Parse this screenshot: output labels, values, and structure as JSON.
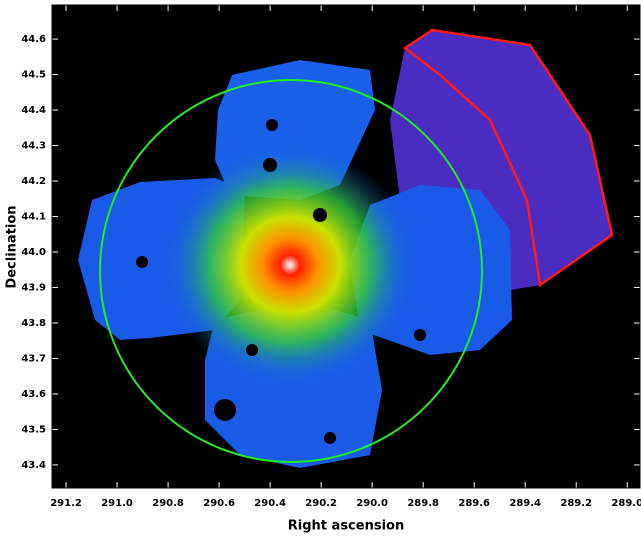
{
  "chart_data": {
    "type": "image",
    "x_label": "Right ascension",
    "y_label": "Declination",
    "xlim": [
      291.255,
      288.95
    ],
    "ylim": [
      43.335,
      44.696
    ],
    "xticks": [
      291.2,
      {
        "value": 291,
        "label": "291.0"
      },
      290.8,
      290.6,
      290.4,
      290.2,
      {
        "value": 290,
        "label": "290.0"
      },
      289.8,
      289.6,
      289.4,
      289.2,
      {
        "value": 289,
        "label": "289.0"
      }
    ],
    "yticks": [
      43.4,
      43.5,
      43.6,
      43.7,
      43.8,
      43.9,
      {
        "value": 44,
        "label": "44.0"
      },
      44.1,
      44.2,
      44.3,
      44.4,
      44.5,
      44.6
    ]
  }
}
